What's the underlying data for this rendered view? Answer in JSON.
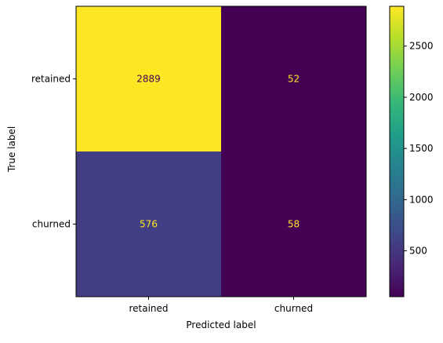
{
  "chart_data": {
    "type": "heatmap",
    "title": "",
    "xlabel": "Predicted label",
    "ylabel": "True label",
    "x_categories": [
      "retained",
      "churned"
    ],
    "y_categories": [
      "retained",
      "churned"
    ],
    "values": [
      [
        2889,
        52
      ],
      [
        576,
        58
      ]
    ],
    "colorbar": {
      "colormap": "viridis",
      "vmin": 52,
      "vmax": 2889,
      "ticks": [
        500,
        1000,
        1500,
        2000,
        2500
      ],
      "tick_labels": [
        "500",
        "1000",
        "1500",
        "2000",
        "2500"
      ]
    },
    "cell_text_colors": {
      "on_dark": "#fde725",
      "on_light": "#440154"
    },
    "grid": false
  }
}
